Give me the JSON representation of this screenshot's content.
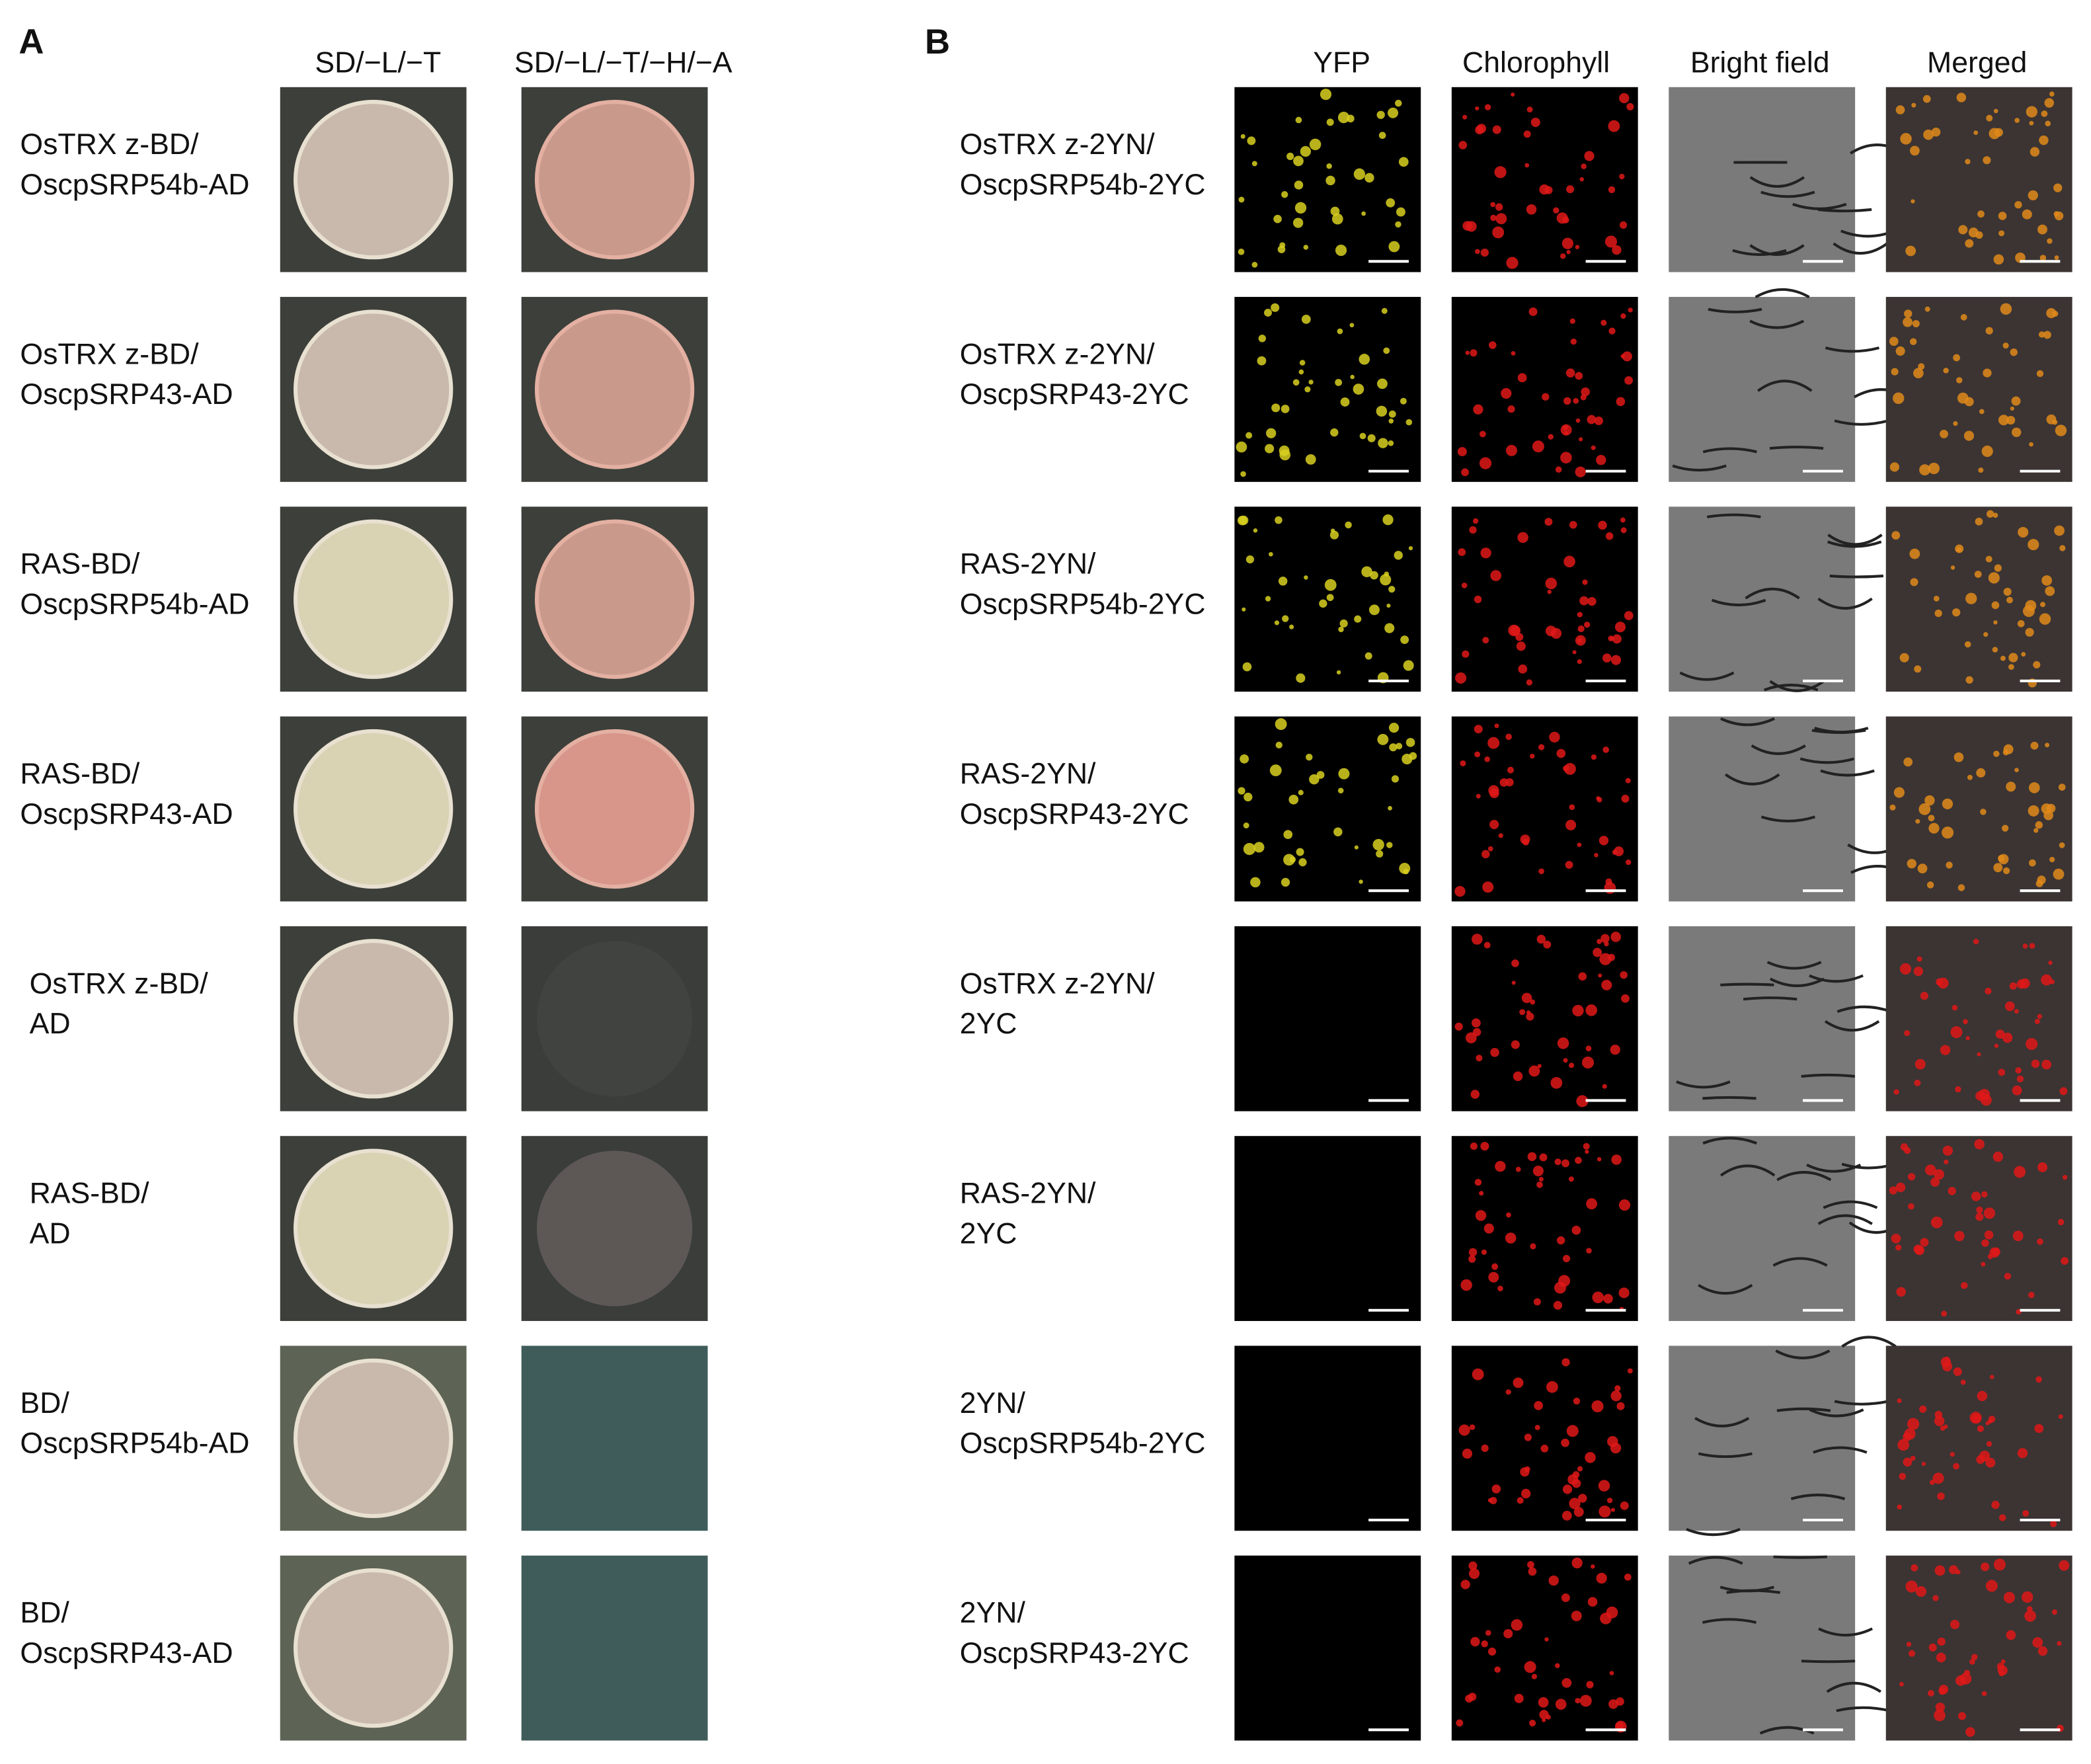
{
  "panel_a": {
    "label": "A",
    "columns": [
      "SD/−L/−T",
      "SD/−L/−T/−H/−A"
    ],
    "rows": [
      [
        "OsTRX z-BD/",
        "OscpSRP54b-AD"
      ],
      [
        "OsTRX z-BD/",
        "OscpSRP43-AD"
      ],
      [
        "RAS-BD/",
        "OscpSRP54b-AD"
      ],
      [
        "RAS-BD/",
        "OscpSRP43-AD"
      ],
      [
        "OsTRX z-BD/",
        "AD"
      ],
      [
        "RAS-BD/",
        "AD"
      ],
      [
        "BD/",
        "OscpSRP54b-AD"
      ],
      [
        "BD/",
        "OscpSRP43-AD"
      ]
    ]
  },
  "panel_b": {
    "label": "B",
    "columns": [
      "YFP",
      "Chlorophyll",
      "Bright field",
      "Merged"
    ],
    "rows": [
      [
        "OsTRX z-2YN/",
        "OscpSRP54b-2YC"
      ],
      [
        "OsTRX z-2YN/",
        "OscpSRP43-2YC"
      ],
      [
        "RAS-2YN/",
        "OscpSRP54b-2YC"
      ],
      [
        "RAS-2YN/",
        "OscpSRP43-2YC"
      ],
      [
        "OsTRX z-2YN/",
        "2YC"
      ],
      [
        "RAS-2YN/",
        "2YC"
      ],
      [
        "2YN/",
        "OscpSRP54b-2YC"
      ],
      [
        "2YN/",
        "OscpSRP43-2YC"
      ]
    ]
  }
}
